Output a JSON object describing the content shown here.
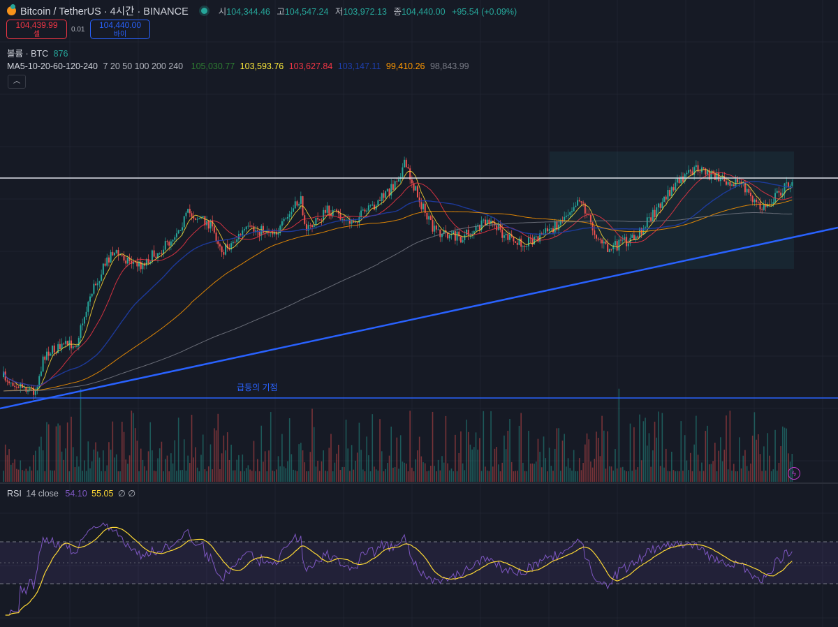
{
  "header": {
    "symbol_title": "Bitcoin / TetherUS · 4시간 · BINANCE",
    "ohlc": {
      "open_label": "시",
      "open": "104,344.46",
      "high_label": "고",
      "high": "104,547.24",
      "low_label": "저",
      "low": "103,972.13",
      "close_label": "종",
      "close": "104,440.00",
      "change": "+95.54 (+0.09%)"
    },
    "market_status": "open"
  },
  "trade": {
    "sell_price": "104,439.99",
    "sell_label": "셀",
    "spread": "0.01",
    "buy_price": "104,440.00",
    "buy_label": "바이"
  },
  "volume": {
    "label": "볼륨 · BTC",
    "value": "876"
  },
  "ma": {
    "label": "MA5-10-20-60-120-240",
    "params": "7 20 50 100 200 240",
    "values": [
      {
        "value": "105,030.77",
        "color": "#2e7d32"
      },
      {
        "value": "103,593.76",
        "color": "#ffeb3b"
      },
      {
        "value": "103,627.84",
        "color": "#f23645"
      },
      {
        "value": "103,147.11",
        "color": "#1e3fae"
      },
      {
        "value": "99,410.26",
        "color": "#ff9800"
      },
      {
        "value": "98,843.99",
        "color": "#787b86"
      }
    ]
  },
  "collapse_icon": "chevron-up-icon",
  "annotation": "급등의 기점",
  "rsi": {
    "label": "RSI",
    "params": "14 close",
    "value": "54.10",
    "ma_value": "55.05",
    "extra1": "∅",
    "extra2": "∅",
    "line_color": "#7e57c2",
    "ma_color": "#fdd835"
  },
  "colors": {
    "up": "#26a69a",
    "down": "#ef5350",
    "background": "#161a25",
    "drawing_blue": "#2962ff"
  },
  "alert_icon": "lightning-icon"
}
